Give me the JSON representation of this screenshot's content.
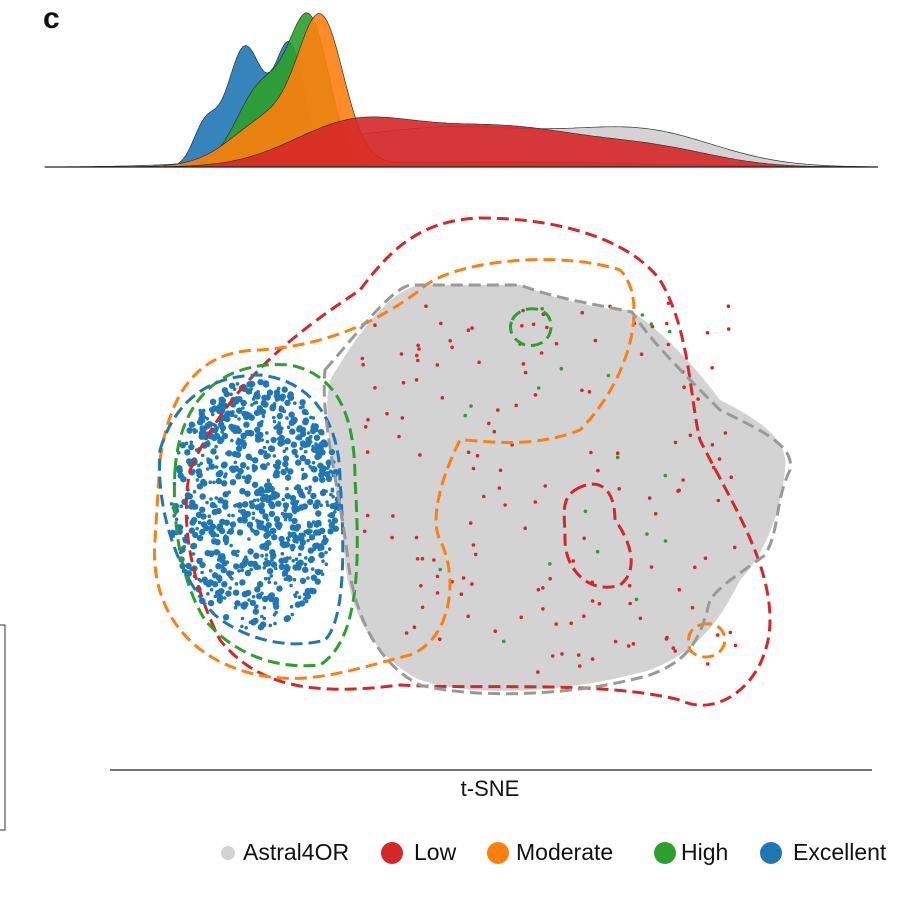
{
  "panel_label": "c",
  "x_axis_label": "t-SNE",
  "legend": [
    {
      "name": "Astral4OR",
      "color": "#d3d3d3"
    },
    {
      "name": "Low",
      "color": "#d62728"
    },
    {
      "name": "Moderate",
      "color": "#ff7f0e"
    },
    {
      "name": "High",
      "color": "#2ca02c"
    },
    {
      "name": "Excellent",
      "color": "#1f77b4"
    }
  ]
}
